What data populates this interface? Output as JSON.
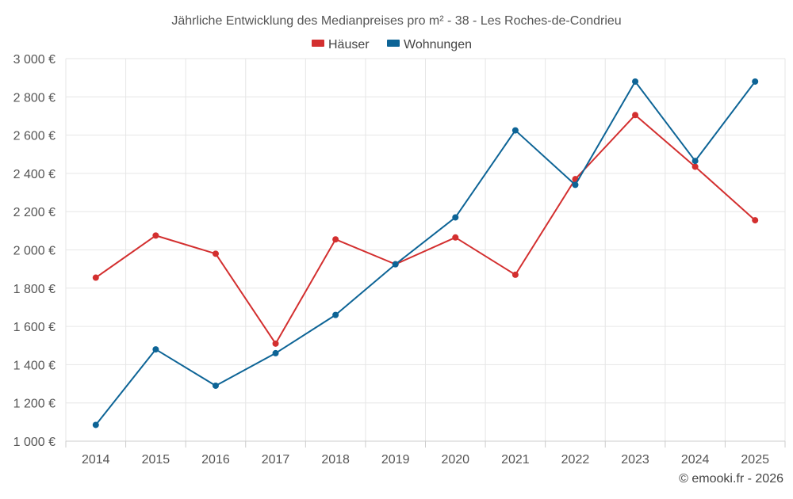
{
  "chart_data": {
    "type": "line",
    "title": "Jährliche Entwicklung des Medianpreises pro m² - 38 - Les Roches-de-Condrieu",
    "categories": [
      "2014",
      "2015",
      "2016",
      "2017",
      "2018",
      "2019",
      "2020",
      "2021",
      "2022",
      "2023",
      "2024",
      "2025"
    ],
    "series": [
      {
        "name": "Häuser",
        "color": "#d32f2f",
        "values": [
          1855,
          2075,
          1980,
          1510,
          2055,
          1925,
          2065,
          1870,
          2370,
          2705,
          2435,
          2155
        ]
      },
      {
        "name": "Wohnungen",
        "color": "#0d6496",
        "values": [
          1085,
          1480,
          1290,
          1460,
          1660,
          1925,
          2170,
          2625,
          2340,
          2880,
          2465,
          2880
        ]
      }
    ],
    "ylim": [
      1000,
      3000
    ],
    "yticks": [
      1000,
      1200,
      1400,
      1600,
      1800,
      2000,
      2200,
      2400,
      2600,
      2800,
      3000
    ],
    "ytick_labels": [
      "1 000 €",
      "1 200 €",
      "1 400 €",
      "1 600 €",
      "1 800 €",
      "2 000 €",
      "2 200 €",
      "2 400 €",
      "2 600 €",
      "2 800 €",
      "3 000 €"
    ],
    "legend_position": "top-center",
    "grid": true
  },
  "credit": "© emooki.fr - 2026"
}
